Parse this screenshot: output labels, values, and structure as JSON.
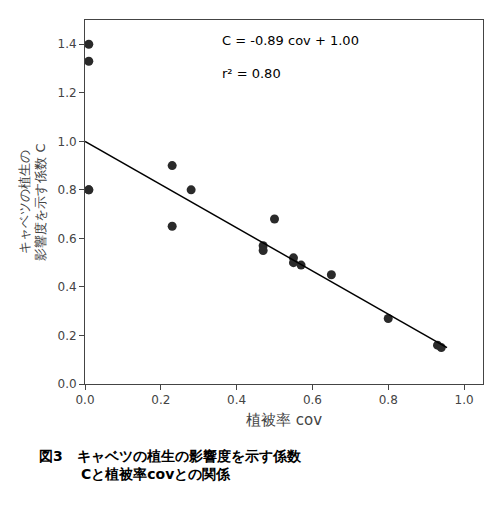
{
  "chart_data": {
    "type": "scatter",
    "xlabel": "植被率 cov",
    "ylabel": [
      "キャベツの植生の",
      "影響度を示す係数 C"
    ],
    "annotations": [
      "C = -0.89 cov + 1.00",
      "r² = 0.80"
    ],
    "caption": [
      "図3　キャベツの植生の影響度を示す係数",
      "　　　Cと植被率covとの関係"
    ],
    "series": [
      {
        "type": "scatter",
        "color": "#2a2a2a",
        "x": [
          0.01,
          0.01,
          0.01,
          0.01,
          0.23,
          0.23,
          0.28,
          0.47,
          0.47,
          0.5,
          0.55,
          0.55,
          0.57,
          0.65,
          0.8,
          0.93,
          0.94
        ],
        "values": [
          1.4,
          1.33,
          0.8,
          0.8,
          0.9,
          0.65,
          0.8,
          0.57,
          0.55,
          0.68,
          0.52,
          0.5,
          0.49,
          0.45,
          0.27,
          0.16,
          0.15
        ]
      },
      {
        "type": "line",
        "color": "#000000",
        "x": [
          0.0,
          0.955
        ],
        "values": [
          1.0,
          0.15005
        ]
      }
    ],
    "xlim": [
      0.0,
      1.05
    ],
    "ylim": [
      0.0,
      1.5
    ],
    "xticks": [
      {
        "value": 0.0,
        "label": "0.0"
      },
      0.2,
      0.4,
      0.6,
      0.8,
      {
        "value": 1.0,
        "label": "1.0"
      }
    ],
    "yticks": [
      {
        "value": 0,
        "label": "0.0"
      },
      0.2,
      0.4,
      0.6,
      0.8,
      {
        "value": 1.0,
        "label": "1.0"
      },
      1.2,
      1.4
    ],
    "grid": false
  }
}
